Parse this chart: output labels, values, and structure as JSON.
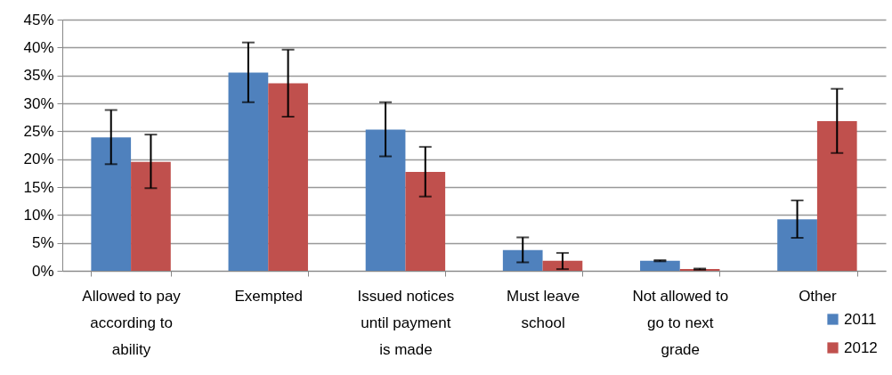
{
  "chart_data": {
    "type": "bar",
    "categories": [
      "Allowed to pay according to ability",
      "Exempted",
      "Issued notices until payment is made",
      "Must leave school",
      "Not allowed to go to next grade",
      "Other"
    ],
    "series": [
      {
        "name": "2011",
        "color": "#4f81bd",
        "values": [
          23.9,
          35.5,
          25.3,
          3.7,
          1.8,
          9.2
        ],
        "errors": [
          [
            19.1,
            28.8
          ],
          [
            30.2,
            40.9
          ],
          [
            20.5,
            30.2
          ],
          [
            1.5,
            6.0
          ],
          [
            1.7,
            1.9
          ],
          [
            5.9,
            12.6
          ]
        ]
      },
      {
        "name": "2012",
        "color": "#c0504d",
        "values": [
          19.5,
          33.6,
          17.7,
          1.8,
          0.3,
          26.8
        ],
        "errors": [
          [
            14.8,
            24.4
          ],
          [
            27.6,
            39.6
          ],
          [
            13.3,
            22.2
          ],
          [
            0.3,
            3.2
          ],
          [
            0.2,
            0.4
          ],
          [
            21.1,
            32.6
          ]
        ]
      }
    ],
    "ylim": [
      0,
      45
    ],
    "yticks": [
      {
        "value": 0,
        "label": "0%"
      },
      {
        "value": 5,
        "label": "5%"
      },
      {
        "value": 10,
        "label": "10%"
      },
      {
        "value": 15,
        "label": "15%"
      },
      {
        "value": 20,
        "label": "20%"
      },
      {
        "value": 25,
        "label": "25%"
      },
      {
        "value": 30,
        "label": "30%"
      },
      {
        "value": 35,
        "label": "35%"
      },
      {
        "value": 40,
        "label": "40%"
      },
      {
        "value": 45,
        "label": "45%"
      }
    ],
    "grid": "y",
    "legend": "bottom right"
  }
}
